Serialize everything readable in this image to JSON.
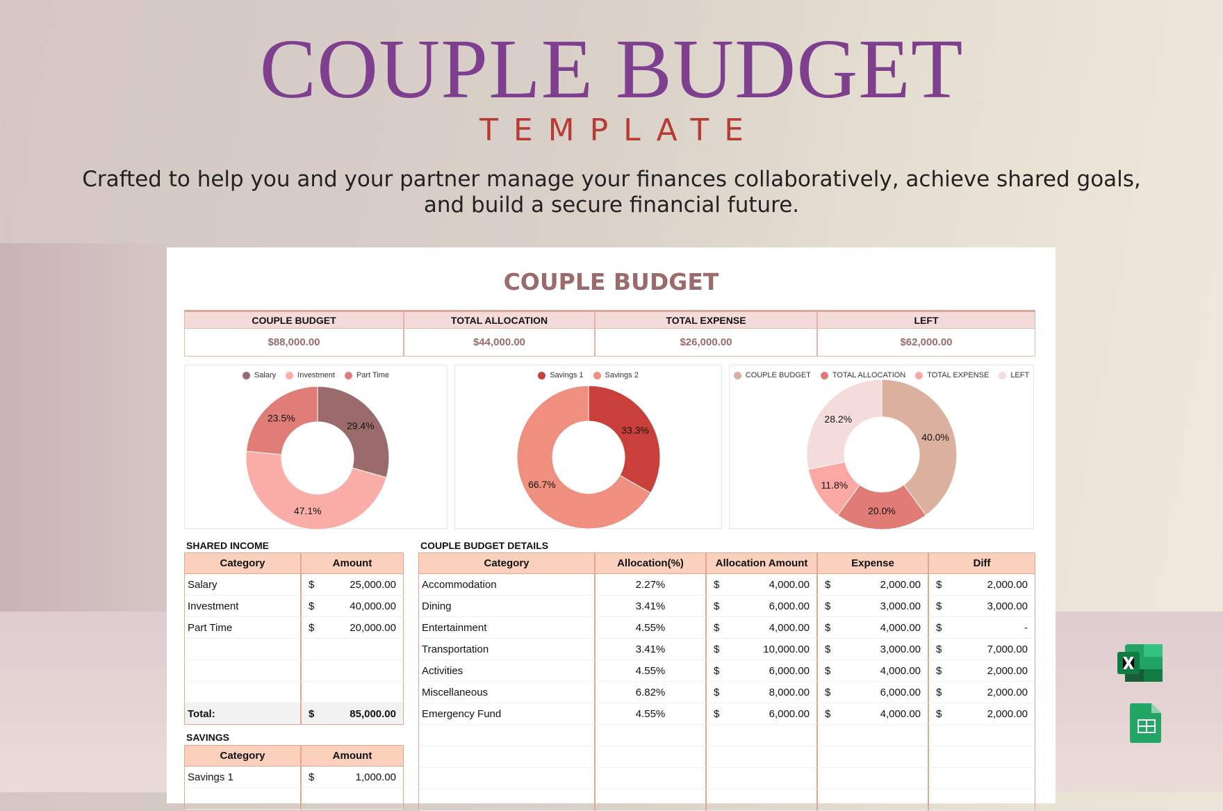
{
  "header": {
    "title": "COUPLE BUDGET",
    "subtitle": "TEMPLATE",
    "description": [
      "Crafted to help you and your partner manage your finances collaboratively, achieve shared goals,",
      "and build a secure financial future."
    ]
  },
  "sheet": {
    "title": "COUPLE BUDGET",
    "summary": [
      {
        "label": "COUPLE BUDGET",
        "value": "$88,000.00"
      },
      {
        "label": "TOTAL ALLOCATION",
        "value": "$44,000.00"
      },
      {
        "label": "TOTAL EXPENSE",
        "value": "$26,000.00"
      },
      {
        "label": "LEFT",
        "value": "$62,000.00"
      }
    ],
    "charts": [
      {
        "type": "donut",
        "categories": [
          "Salary",
          "Investment",
          "Part Time"
        ],
        "values": [
          29.4,
          47.1,
          23.5
        ],
        "value_labels": [
          "29.4%",
          "47.1%",
          "23.5%"
        ],
        "colors": [
          "#9b6b6b",
          "#fbaea8",
          "#df7d76"
        ]
      },
      {
        "type": "donut",
        "categories": [
          "Savings 1",
          "Savings 2"
        ],
        "values": [
          33.3,
          66.7
        ],
        "value_labels": [
          "33.3%",
          "66.7%"
        ],
        "colors": [
          "#c9403a",
          "#ef8f7f"
        ]
      },
      {
        "type": "donut",
        "categories": [
          "COUPLE BUDGET",
          "TOTAL ALLOCATION",
          "TOTAL EXPENSE",
          "LEFT"
        ],
        "values": [
          40.0,
          20.0,
          11.8,
          28.2
        ],
        "value_labels": [
          "40.0%",
          "20.0%",
          "11.8%",
          "28.2%"
        ],
        "colors": [
          "#dcb09e",
          "#e07b75",
          "#fba7a3",
          "#f5dcdc"
        ]
      }
    ],
    "shared_income": {
      "title": "SHARED INCOME",
      "header": [
        "Category",
        "Amount"
      ],
      "rows": [
        [
          "Salary",
          "$",
          "25,000.00"
        ],
        [
          "Investment",
          "$",
          "40,000.00"
        ],
        [
          "Part Time",
          "$",
          "20,000.00"
        ]
      ],
      "total": [
        "Total:",
        "$",
        "85,000.00"
      ]
    },
    "savings": {
      "title": "SAVINGS",
      "header": [
        "Category",
        "Amount"
      ],
      "rows": [
        [
          "Savings 1",
          "$",
          "1,000.00"
        ]
      ]
    },
    "details": {
      "title": "COUPLE BUDGET DETAILS",
      "header": [
        "Category",
        "Allocation(%)",
        "Allocation Amount",
        "Expense",
        "Diff"
      ],
      "rows": [
        [
          "Accommodation",
          "2.27%",
          "$",
          "4,000.00",
          "$",
          "2,000.00",
          "$",
          "2,000.00"
        ],
        [
          "Dining",
          "3.41%",
          "$",
          "6,000.00",
          "$",
          "3,000.00",
          "$",
          "3,000.00"
        ],
        [
          "Entertainment",
          "4.55%",
          "$",
          "4,000.00",
          "$",
          "4,000.00",
          "$",
          "-"
        ],
        [
          "Transportation",
          "3.41%",
          "$",
          "10,000.00",
          "$",
          "3,000.00",
          "$",
          "7,000.00"
        ],
        [
          "Activities",
          "4.55%",
          "$",
          "6,000.00",
          "$",
          "4,000.00",
          "$",
          "2,000.00"
        ],
        [
          "Miscellaneous",
          "6.82%",
          "$",
          "8,000.00",
          "$",
          "6,000.00",
          "$",
          "2,000.00"
        ],
        [
          "Emergency Fund",
          "4.55%",
          "$",
          "6,000.00",
          "$",
          "4,000.00",
          "$",
          "2,000.00"
        ]
      ]
    }
  }
}
